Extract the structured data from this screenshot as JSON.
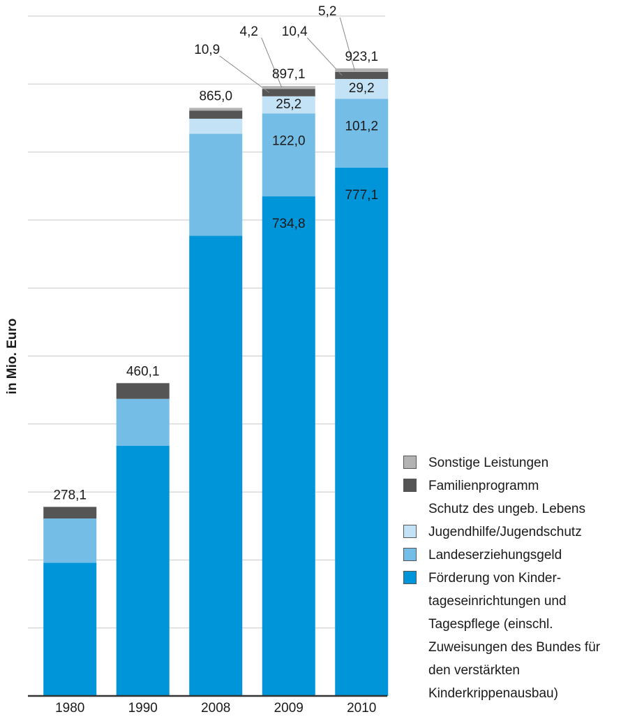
{
  "chart_data": {
    "type": "stacked_bar",
    "y_label": "in Mio. Euro",
    "categories": [
      "1980",
      "1990",
      "2008",
      "2009",
      "2010"
    ],
    "ylim": [
      0,
      1000
    ],
    "yticks": [
      0,
      100,
      200,
      300,
      400,
      500,
      600,
      700,
      800,
      900,
      1000
    ],
    "grid": true,
    "series": [
      {
        "name": "Förderung von Kinder­tageseinrichtungen und Tagespflege (einschl. Zuweisungen des Bundes für den verstärkten Kinderkrippenausbau)",
        "color": "#0095d9",
        "values": [
          196,
          368,
          677,
          734.8,
          777.1
        ],
        "value_labels": [
          null,
          null,
          null,
          "734,8",
          "777,1"
        ]
      },
      {
        "name": "Landeserziehungsgeld",
        "color": "#74bde6",
        "values": [
          65,
          69,
          150,
          122.0,
          101.2
        ],
        "value_labels": [
          null,
          null,
          null,
          "122,0",
          "101,2"
        ]
      },
      {
        "name": "Jugendhilfe/Jugendschutz",
        "color": "#c4e2f5",
        "values": [
          0,
          0,
          22,
          25.2,
          29.2
        ],
        "value_labels": [
          null,
          null,
          null,
          "25,2",
          "29,2"
        ]
      },
      {
        "name": "Schutz des ungeb. Lebens",
        "color": "#ffffff",
        "values": [
          0,
          0,
          0,
          0,
          0
        ]
      },
      {
        "name": "Familienprogramm",
        "color": "#555555",
        "values": [
          17.1,
          23.1,
          12,
          10.9,
          10.4
        ],
        "value_labels": [
          null,
          null,
          null,
          "10,9",
          "10,4"
        ]
      },
      {
        "name": "Sonstige Leistungen",
        "color": "#b3b3b3",
        "values": [
          0,
          0,
          4,
          4.2,
          5.2
        ],
        "value_labels": [
          null,
          null,
          null,
          "4,2",
          "5,2"
        ]
      }
    ],
    "totals": [
      278.1,
      460.1,
      865.0,
      897.1,
      923.1
    ],
    "total_labels": [
      "278,1",
      "460,1",
      "865,0",
      "897,1",
      "923,1"
    ]
  }
}
